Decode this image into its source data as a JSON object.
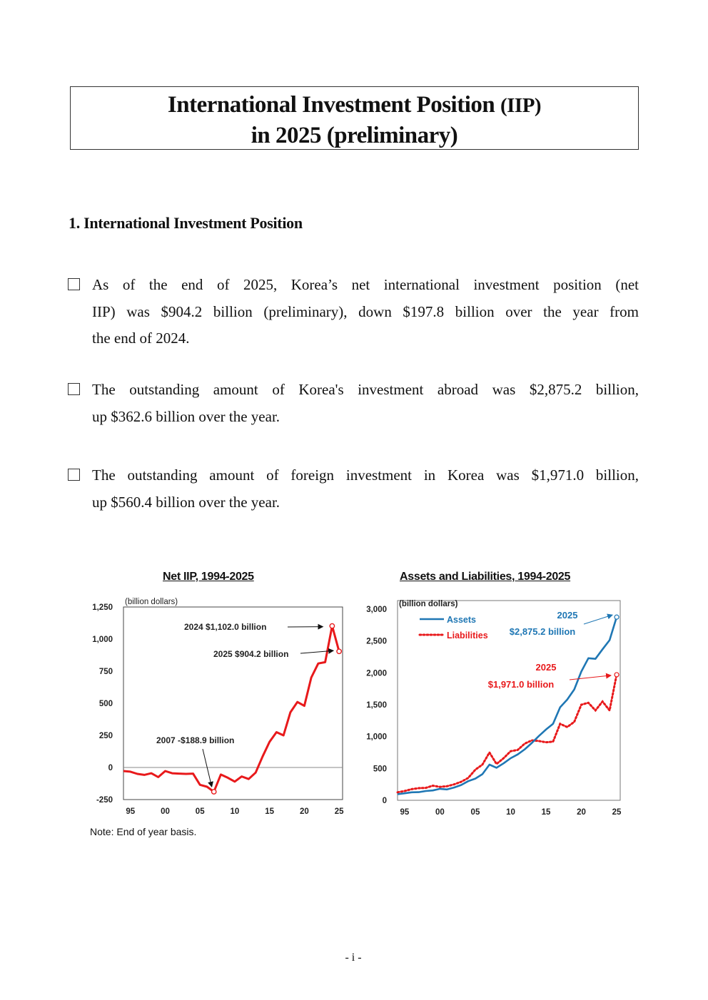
{
  "title": {
    "line1_main": "International Investment Position",
    "line1_abbrev": "(IIP)",
    "line2": "in 2025 (preliminary)"
  },
  "section": {
    "heading": "1. International Investment Position"
  },
  "paragraphs": [
    {
      "lines": [
        "As of the end of 2025, Korea’s net international investment position (net",
        "IIP) was $904.2 billion (preliminary), down $197.8 billion over the year from",
        "the end of 2024."
      ]
    },
    {
      "lines": [
        "The outstanding amount of Korea's investment abroad was $2,875.2 billion,",
        "up $362.6 billion over the year."
      ]
    },
    {
      "lines": [
        "The outstanding amount of foreign investment in Korea was $1,971.0 billion,",
        "up $560.4 billion over the year."
      ]
    }
  ],
  "chart_data": [
    {
      "type": "line",
      "title": "Net IIP, 1994-2025",
      "unit_label": "(billion dollars)",
      "ylim": [
        -250,
        1250
      ],
      "yticks": [
        "1,250",
        "1,000",
        "750",
        "500",
        "250",
        "0",
        "-250"
      ],
      "xticks": [
        "95",
        "00",
        "05",
        "10",
        "15",
        "20",
        "25"
      ],
      "series": [
        {
          "color": "#e8191b",
          "x": [
            1994,
            1995,
            1996,
            1997,
            1998,
            1999,
            2000,
            2001,
            2002,
            2003,
            2004,
            2005,
            2006,
            2007,
            2008,
            2009,
            2010,
            2011,
            2012,
            2013,
            2014,
            2015,
            2016,
            2017,
            2018,
            2019,
            2020,
            2021,
            2022,
            2023,
            2024,
            2025
          ],
          "values": [
            -28,
            -33,
            -50,
            -58,
            -45,
            -75,
            -28,
            -45,
            -48,
            -50,
            -48,
            -135,
            -150,
            -188.9,
            -55,
            -80,
            -110,
            -70,
            -90,
            -40,
            85,
            200,
            275,
            250,
            430,
            510,
            480,
            700,
            810,
            820,
            1102,
            904.2
          ]
        }
      ],
      "annotations": [
        {
          "text": "2024 $1,102.0 billion"
        },
        {
          "text": "2025 $904.2 billion"
        },
        {
          "text": "2007 -$188.9 billion"
        }
      ],
      "grid": false,
      "zero_line": true
    },
    {
      "type": "line",
      "title": "Assets and Liabilities, 1994-2025",
      "unit_label": "(billion dollars)",
      "ylim": [
        0,
        3000
      ],
      "yticks": [
        "3,000",
        "2,500",
        "2,000",
        "1,500",
        "1,000",
        "500",
        "0"
      ],
      "xticks": [
        "95",
        "00",
        "05",
        "10",
        "15",
        "20",
        "25"
      ],
      "legend_position": "top-left",
      "series": [
        {
          "name": "Assets",
          "color": "#1f77b4",
          "style": "solid",
          "x": [
            1994,
            1995,
            1996,
            1997,
            1998,
            1999,
            2000,
            2001,
            2002,
            2003,
            2004,
            2005,
            2006,
            2007,
            2008,
            2009,
            2010,
            2011,
            2012,
            2013,
            2014,
            2015,
            2016,
            2017,
            2018,
            2019,
            2020,
            2021,
            2022,
            2023,
            2024,
            2025
          ],
          "values": [
            95,
            110,
            125,
            128,
            145,
            155,
            180,
            170,
            200,
            240,
            300,
            340,
            410,
            560,
            510,
            580,
            660,
            720,
            800,
            900,
            1010,
            1110,
            1200,
            1460,
            1580,
            1740,
            2020,
            2230,
            2220,
            2370,
            2512.6,
            2875.2
          ]
        },
        {
          "name": "Liabilities",
          "color": "#e8191b",
          "style": "dotted",
          "x": [
            1994,
            1995,
            1996,
            1997,
            1998,
            1999,
            2000,
            2001,
            2002,
            2003,
            2004,
            2005,
            2006,
            2007,
            2008,
            2009,
            2010,
            2011,
            2012,
            2013,
            2014,
            2015,
            2016,
            2017,
            2018,
            2019,
            2020,
            2021,
            2022,
            2023,
            2024,
            2025
          ],
          "values": [
            125,
            145,
            175,
            190,
            195,
            230,
            210,
            220,
            250,
            290,
            350,
            480,
            560,
            750,
            570,
            660,
            770,
            790,
            890,
            940,
            930,
            910,
            920,
            1200,
            1150,
            1230,
            1500,
            1530,
            1410,
            1550,
            1410.6,
            1971.0
          ]
        }
      ],
      "annotations": [
        {
          "year": "2025",
          "text": "$2,875.2 billion",
          "color": "#1f77b4"
        },
        {
          "year": "2025",
          "text": "$1,971.0 billion",
          "color": "#e8191b"
        }
      ],
      "grid": false
    }
  ],
  "note": "Note: End of year basis.",
  "page_number": "- i -"
}
